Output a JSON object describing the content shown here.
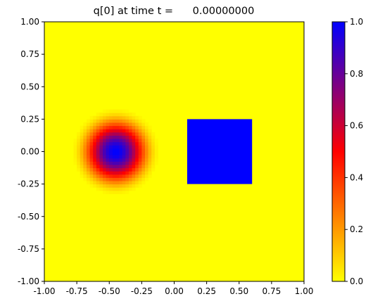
{
  "chart_data": {
    "type": "heatmap",
    "title": "q[0] at time t =      0.00000000",
    "xlim": [
      -1.0,
      1.0
    ],
    "ylim": [
      -1.0,
      1.0
    ],
    "x_ticks": [
      "-1.00",
      "-0.75",
      "-0.50",
      "-0.25",
      "0.00",
      "0.25",
      "0.50",
      "0.75",
      "1.00"
    ],
    "y_ticks": [
      "1.00",
      "0.75",
      "0.50",
      "0.25",
      "0.00",
      "-0.25",
      "-0.50",
      "-0.75",
      "-1.00"
    ],
    "x_tick_values": [
      -1.0,
      -0.75,
      -0.5,
      -0.25,
      0.0,
      0.25,
      0.5,
      0.75,
      1.0
    ],
    "y_tick_values": [
      1.0,
      0.75,
      0.5,
      0.25,
      0.0,
      -0.25,
      -0.5,
      -0.75,
      -1.0
    ],
    "grid": false,
    "field": {
      "background_value": 0.0,
      "gaussian_blob": {
        "center": [
          -0.45,
          0.0
        ],
        "radius": 0.35,
        "peak_value": 1.0
      },
      "square": {
        "x_range": [
          0.1,
          0.6
        ],
        "y_range": [
          -0.25,
          0.25
        ],
        "value": 1.0
      }
    },
    "colorbar": {
      "range": [
        0.0,
        1.0
      ],
      "ticks": [
        "1.0",
        "0.8",
        "0.6",
        "0.4",
        "0.2",
        "0.0"
      ],
      "tick_values": [
        1.0,
        0.8,
        0.6,
        0.4,
        0.2,
        0.0
      ],
      "colors": {
        "low": "#ffff00",
        "mid": "#ff0000",
        "high": "#0000ff"
      }
    }
  }
}
